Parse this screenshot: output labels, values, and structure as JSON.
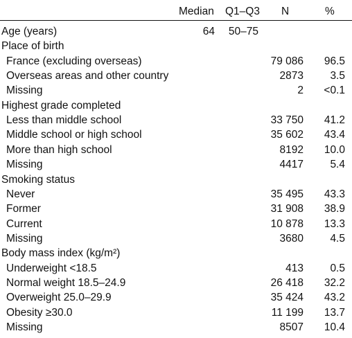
{
  "header": {
    "median": "Median",
    "q1q3": "Q1–Q3",
    "n": "N",
    "pct": "%"
  },
  "rows": [
    {
      "label": "Age (years)",
      "indent": false,
      "median": "64",
      "q1q3": "50–75",
      "n": "",
      "pct": ""
    },
    {
      "label": "Place of birth",
      "indent": false,
      "median": "",
      "q1q3": "",
      "n": "",
      "pct": ""
    },
    {
      "label": "France (excluding overseas)",
      "indent": true,
      "median": "",
      "q1q3": "",
      "n": "79 086",
      "pct": "96.5"
    },
    {
      "label": "Overseas areas and other country",
      "indent": true,
      "median": "",
      "q1q3": "",
      "n": "2873",
      "pct": "3.5"
    },
    {
      "label": "Missing",
      "indent": true,
      "median": "",
      "q1q3": "",
      "n": "2",
      "pct": "<0.1"
    },
    {
      "label": "Highest grade completed",
      "indent": false,
      "median": "",
      "q1q3": "",
      "n": "",
      "pct": ""
    },
    {
      "label": "Less than middle school",
      "indent": true,
      "median": "",
      "q1q3": "",
      "n": "33 750",
      "pct": "41.2"
    },
    {
      "label": "Middle school or high school",
      "indent": true,
      "median": "",
      "q1q3": "",
      "n": "35 602",
      "pct": "43.4"
    },
    {
      "label": "More than high school",
      "indent": true,
      "median": "",
      "q1q3": "",
      "n": "8192",
      "pct": "10.0"
    },
    {
      "label": "Missing",
      "indent": true,
      "median": "",
      "q1q3": "",
      "n": "4417",
      "pct": "5.4"
    },
    {
      "label": "Smoking status",
      "indent": false,
      "median": "",
      "q1q3": "",
      "n": "",
      "pct": ""
    },
    {
      "label": "Never",
      "indent": true,
      "median": "",
      "q1q3": "",
      "n": "35 495",
      "pct": "43.3"
    },
    {
      "label": "Former",
      "indent": true,
      "median": "",
      "q1q3": "",
      "n": "31 908",
      "pct": "38.9"
    },
    {
      "label": "Current",
      "indent": true,
      "median": "",
      "q1q3": "",
      "n": "10 878",
      "pct": "13.3"
    },
    {
      "label": "Missing",
      "indent": true,
      "median": "",
      "q1q3": "",
      "n": "3680",
      "pct": "4.5"
    },
    {
      "label": "Body mass index (kg/m²)",
      "indent": false,
      "median": "",
      "q1q3": "",
      "n": "",
      "pct": ""
    },
    {
      "label": "Underweight <18.5",
      "indent": true,
      "median": "",
      "q1q3": "",
      "n": "413",
      "pct": "0.5"
    },
    {
      "label": "Normal weight 18.5–24.9",
      "indent": true,
      "median": "",
      "q1q3": "",
      "n": "26 418",
      "pct": "32.2"
    },
    {
      "label": "Overweight 25.0–29.9",
      "indent": true,
      "median": "",
      "q1q3": "",
      "n": "35 424",
      "pct": "43.2"
    },
    {
      "label": "Obesity ≥30.0",
      "indent": true,
      "median": "",
      "q1q3": "",
      "n": "11 199",
      "pct": "13.7"
    },
    {
      "label": "Missing",
      "indent": true,
      "median": "",
      "q1q3": "",
      "n": "8507",
      "pct": "10.4"
    }
  ]
}
